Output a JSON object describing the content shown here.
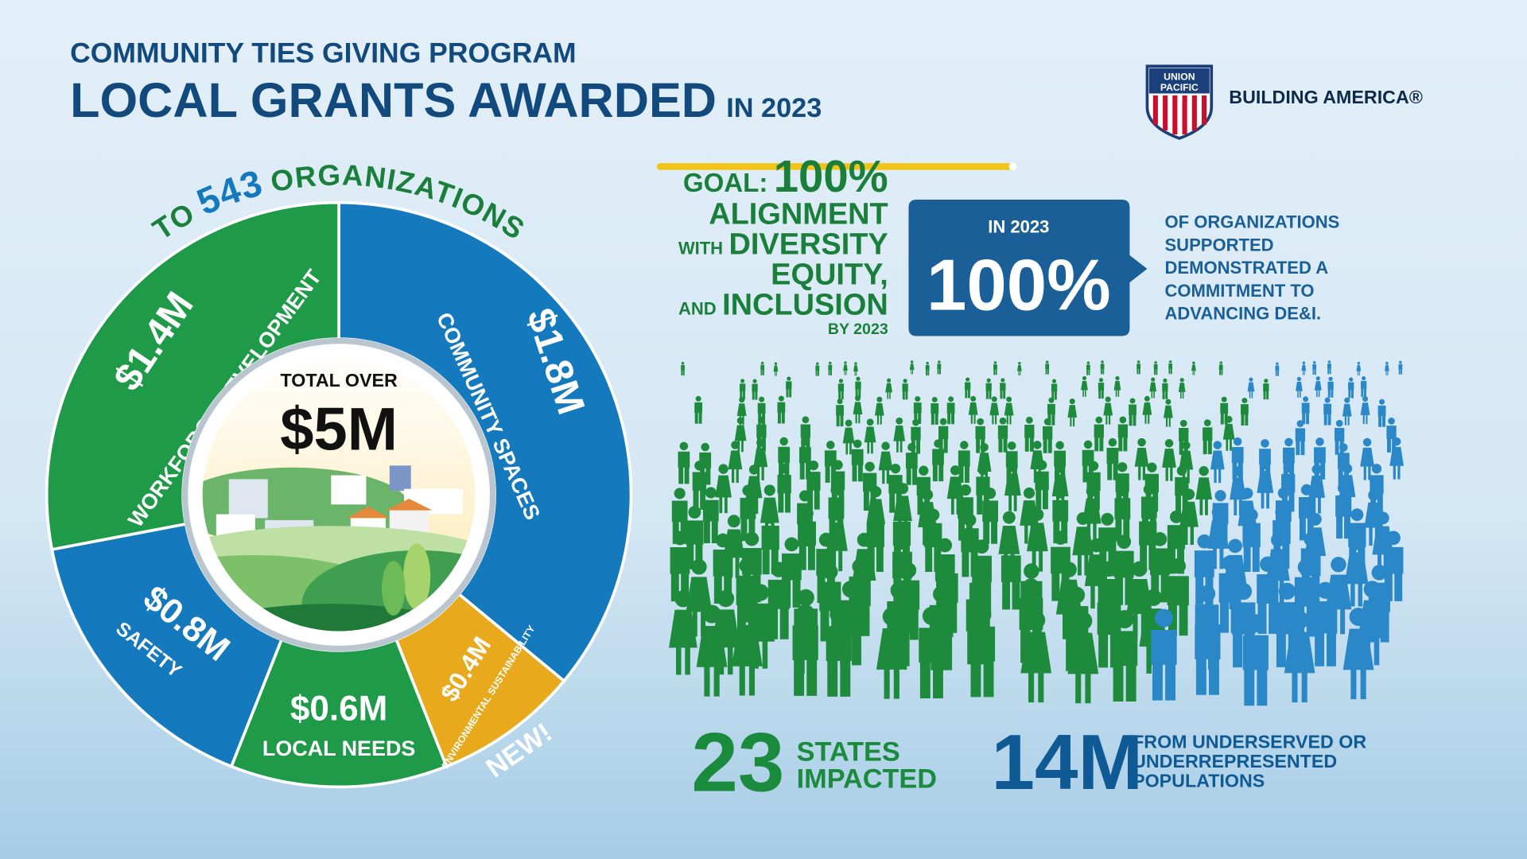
{
  "header": {
    "subtitle": "COMMUNITY TIES GIVING PROGRAM",
    "title": "LOCAL GRANTS AWARDED",
    "title_suffix": "IN 2023"
  },
  "logo": {
    "shield_top": "UNION",
    "shield_bottom": "PACIFIC",
    "tagline": "BUILDING AMERICA®"
  },
  "chart_data": {
    "type": "donut",
    "title_prefix": "TO",
    "title_number": 543,
    "title_suffix": "ORGANIZATIONS",
    "categories": [
      "COMMUNITY SPACES",
      "ENVIRONMENTAL SUSTAINABILITY",
      "LOCAL NEEDS",
      "SAFETY",
      "WORKFORCE DEVELOPMENT"
    ],
    "values": [
      1.8,
      0.4,
      0.6,
      0.8,
      1.4
    ],
    "value_labels": [
      "$1.8M",
      "$0.4M",
      "$0.6M",
      "$0.8M",
      "$1.4M"
    ],
    "colors": [
      "#1479bd",
      "#e8a91c",
      "#1e9a48",
      "#1479bd",
      "#1e9a48"
    ],
    "center_label": "TOTAL OVER",
    "center_value": "$5M",
    "annotation": "NEW!"
  },
  "goal": {
    "label": "GOAL:",
    "value": "100%",
    "line1": "ALIGNMENT",
    "line2_small": "WITH",
    "line2": "DIVERSITY",
    "line3": "EQUITY,",
    "line4_small": "AND",
    "line4": "INCLUSION",
    "line5": "BY 2023"
  },
  "callout": {
    "year": "IN 2023",
    "value": "100%",
    "text": [
      "OF ORGANIZATIONS",
      "SUPPORTED",
      "DEMONSTRATED A",
      "COMMITMENT TO",
      "ADVANCING DE&I."
    ]
  },
  "stats": [
    {
      "value": "23",
      "label": [
        "STATES",
        "IMPACTED"
      ]
    },
    {
      "value": "14M",
      "label": [
        "FROM UNDERSERVED OR",
        "UNDERREPRESENTED",
        "POPULATIONS"
      ]
    }
  ]
}
